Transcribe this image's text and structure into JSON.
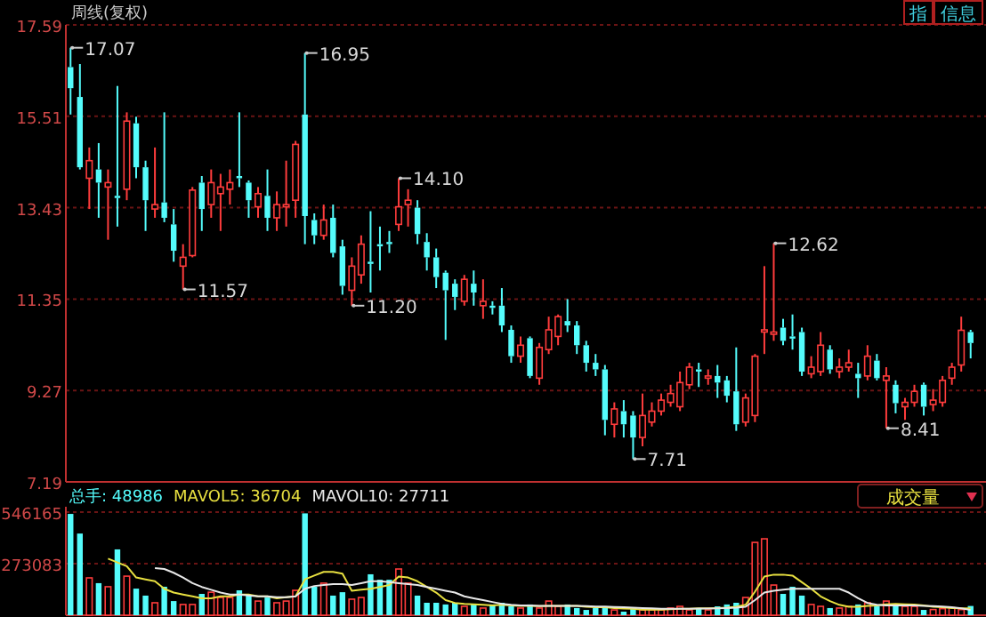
{
  "chart_data": [
    {
      "type": "candlestick",
      "title": "周线(复权)",
      "grid": "y",
      "ylim": [
        7.19,
        17.59
      ],
      "yticks": [
        7.19,
        9.27,
        11.35,
        13.43,
        15.51,
        17.59
      ],
      "categories": [
        null,
        null,
        null,
        null,
        null,
        null,
        null,
        null,
        null,
        null,
        null,
        null,
        null,
        null,
        null,
        null,
        null,
        null,
        null,
        null,
        null,
        null,
        null,
        null,
        null,
        null,
        null,
        null,
        null,
        null,
        null,
        null,
        null,
        null,
        null,
        null,
        null,
        null,
        null,
        null,
        null,
        null,
        null,
        null,
        null,
        null,
        null,
        null,
        null,
        null,
        null,
        null,
        null,
        null,
        null,
        null,
        null,
        null,
        null,
        null,
        null,
        null,
        null,
        null,
        null,
        null,
        null,
        null,
        null,
        null,
        null,
        null,
        null,
        null,
        null,
        null,
        null,
        null,
        null,
        null,
        null,
        null,
        null,
        null,
        null,
        null,
        null,
        null,
        null,
        null,
        null,
        null,
        null,
        null,
        null,
        null,
        null
      ],
      "ohlc": [
        [
          16.63,
          17.07,
          15.55,
          16.15
        ],
        [
          15.95,
          16.7,
          14.3,
          14.35
        ],
        [
          14.1,
          14.8,
          13.4,
          14.5
        ],
        [
          14.3,
          14.9,
          13.2,
          14.0
        ],
        [
          13.9,
          14.3,
          12.7,
          14.0
        ],
        [
          13.7,
          16.2,
          13.0,
          13.65
        ],
        [
          13.85,
          15.6,
          13.6,
          15.4
        ],
        [
          15.35,
          15.5,
          14.1,
          14.35
        ],
        [
          14.35,
          14.5,
          12.9,
          13.6
        ],
        [
          13.4,
          14.8,
          13.2,
          13.5
        ],
        [
          13.55,
          15.6,
          13.1,
          13.2
        ],
        [
          13.05,
          13.4,
          12.2,
          12.45
        ],
        [
          12.1,
          12.6,
          11.57,
          12.3
        ],
        [
          12.34,
          13.9,
          12.3,
          13.83
        ],
        [
          14.0,
          14.15,
          12.9,
          13.4
        ],
        [
          13.5,
          14.3,
          13.2,
          14.0
        ],
        [
          13.75,
          14.2,
          12.9,
          13.9
        ],
        [
          13.85,
          14.3,
          13.5,
          14.0
        ],
        [
          14.15,
          15.6,
          13.9,
          14.1
        ],
        [
          14.0,
          14.05,
          13.2,
          13.6
        ],
        [
          13.45,
          13.9,
          13.2,
          13.75
        ],
        [
          13.7,
          14.3,
          12.9,
          13.2
        ],
        [
          13.2,
          13.8,
          12.9,
          13.5
        ],
        [
          13.45,
          14.5,
          13.0,
          13.5
        ],
        [
          13.6,
          14.95,
          13.2,
          14.87
        ],
        [
          15.55,
          16.95,
          12.6,
          13.24
        ],
        [
          13.15,
          13.3,
          12.6,
          12.8
        ],
        [
          12.8,
          13.5,
          12.7,
          13.15
        ],
        [
          13.2,
          13.5,
          12.3,
          12.4
        ],
        [
          12.55,
          12.7,
          11.45,
          11.65
        ],
        [
          11.55,
          12.3,
          11.2,
          12.1
        ],
        [
          11.9,
          12.8,
          11.7,
          12.6
        ],
        [
          12.2,
          13.35,
          11.5,
          12.15
        ],
        [
          12.6,
          13.0,
          12.0,
          12.55
        ],
        [
          12.65,
          12.9,
          12.4,
          12.6
        ],
        [
          13.05,
          14.1,
          12.9,
          13.45
        ],
        [
          13.5,
          13.85,
          13.0,
          13.6
        ],
        [
          13.43,
          13.6,
          12.6,
          12.83
        ],
        [
          12.65,
          12.85,
          12.0,
          12.3
        ],
        [
          12.3,
          12.5,
          11.6,
          11.85
        ],
        [
          11.95,
          12.0,
          10.42,
          11.55
        ],
        [
          11.7,
          11.8,
          11.1,
          11.4
        ],
        [
          11.3,
          11.9,
          11.2,
          11.8
        ],
        [
          11.7,
          12.0,
          11.2,
          11.5
        ],
        [
          11.2,
          11.8,
          10.9,
          11.3
        ],
        [
          11.2,
          11.3,
          11.0,
          11.15
        ],
        [
          11.2,
          11.6,
          10.6,
          10.75
        ],
        [
          10.65,
          10.75,
          9.9,
          10.05
        ],
        [
          10.05,
          10.5,
          9.9,
          10.3
        ],
        [
          10.46,
          10.5,
          9.55,
          9.6
        ],
        [
          9.55,
          10.35,
          9.4,
          10.25
        ],
        [
          10.2,
          10.95,
          10.1,
          10.65
        ],
        [
          10.5,
          11.0,
          10.3,
          10.95
        ],
        [
          10.85,
          11.35,
          10.6,
          10.75
        ],
        [
          10.75,
          10.85,
          10.1,
          10.3
        ],
        [
          10.3,
          10.4,
          9.7,
          9.9
        ],
        [
          9.9,
          10.1,
          9.6,
          9.75
        ],
        [
          9.75,
          9.85,
          8.25,
          8.6
        ],
        [
          8.5,
          9.0,
          8.2,
          8.85
        ],
        [
          8.8,
          9.05,
          8.2,
          8.5
        ],
        [
          8.7,
          8.8,
          7.71,
          8.2
        ],
        [
          8.2,
          9.2,
          8.0,
          8.7
        ],
        [
          8.55,
          9.0,
          8.45,
          8.8
        ],
        [
          8.8,
          9.2,
          8.7,
          9.05
        ],
        [
          9.0,
          9.4,
          8.9,
          9.2
        ],
        [
          8.9,
          9.7,
          8.8,
          9.45
        ],
        [
          9.4,
          9.9,
          9.3,
          9.8
        ],
        [
          9.75,
          9.9,
          9.35,
          9.7
        ],
        [
          9.55,
          9.75,
          9.4,
          9.6
        ],
        [
          9.6,
          9.85,
          9.1,
          9.45
        ],
        [
          9.5,
          9.6,
          9.0,
          9.15
        ],
        [
          9.25,
          10.25,
          8.35,
          8.5
        ],
        [
          8.55,
          9.2,
          8.45,
          9.1
        ],
        [
          8.7,
          10.1,
          8.55,
          10.05
        ],
        [
          10.6,
          12.1,
          10.1,
          10.65
        ],
        [
          10.55,
          12.62,
          10.4,
          10.6
        ],
        [
          10.7,
          10.9,
          10.3,
          10.4
        ],
        [
          10.5,
          11.0,
          10.2,
          10.45
        ],
        [
          10.6,
          10.7,
          9.6,
          9.7
        ],
        [
          9.65,
          10.05,
          9.55,
          9.8
        ],
        [
          9.7,
          10.6,
          9.6,
          10.3
        ],
        [
          10.2,
          10.3,
          9.65,
          9.75
        ],
        [
          9.7,
          10.0,
          9.55,
          9.8
        ],
        [
          9.8,
          10.2,
          9.7,
          9.9
        ],
        [
          9.65,
          9.9,
          9.1,
          9.55
        ],
        [
          9.6,
          10.3,
          9.5,
          10.05
        ],
        [
          9.95,
          10.1,
          9.5,
          9.55
        ],
        [
          9.5,
          9.8,
          8.41,
          9.6
        ],
        [
          9.4,
          9.5,
          8.75,
          8.98
        ],
        [
          8.9,
          9.1,
          8.6,
          9.0
        ],
        [
          9.0,
          9.4,
          8.9,
          9.25
        ],
        [
          9.4,
          9.45,
          8.7,
          8.9
        ],
        [
          8.95,
          9.3,
          8.8,
          9.05
        ],
        [
          9.0,
          9.6,
          8.9,
          9.5
        ],
        [
          9.55,
          9.9,
          9.4,
          9.8
        ],
        [
          9.85,
          10.95,
          9.7,
          10.64
        ],
        [
          10.6,
          10.65,
          10.0,
          10.35
        ]
      ],
      "colors": [
        "#54fcfc",
        "#54fcfc",
        "#ff3c3c",
        "#54fcfc",
        "#ff3c3c",
        "#54fcfc",
        "#ff3c3c",
        "#54fcfc",
        "#54fcfc",
        "#ff3c3c",
        "#54fcfc",
        "#54fcfc",
        "#ff3c3c",
        "#ff3c3c",
        "#54fcfc",
        "#ff3c3c",
        "#ff3c3c",
        "#ff3c3c",
        "#54fcfc",
        "#54fcfc",
        "#ff3c3c",
        "#54fcfc",
        "#ff3c3c",
        "#ff3c3c",
        "#ff3c3c",
        "#54fcfc",
        "#54fcfc",
        "#ff3c3c",
        "#54fcfc",
        "#54fcfc",
        "#ff3c3c",
        "#ff3c3c",
        "#54fcfc",
        "#54fcfc",
        "#54fcfc",
        "#ff3c3c",
        "#ff3c3c",
        "#54fcfc",
        "#54fcfc",
        "#54fcfc",
        "#54fcfc",
        "#54fcfc",
        "#ff3c3c",
        "#54fcfc",
        "#ff3c3c",
        "#54fcfc",
        "#54fcfc",
        "#54fcfc",
        "#ff3c3c",
        "#54fcfc",
        "#ff3c3c",
        "#ff3c3c",
        "#ff3c3c",
        "#54fcfc",
        "#54fcfc",
        "#54fcfc",
        "#54fcfc",
        "#54fcfc",
        "#ff3c3c",
        "#54fcfc",
        "#54fcfc",
        "#ff3c3c",
        "#ff3c3c",
        "#ff3c3c",
        "#ff3c3c",
        "#ff3c3c",
        "#ff3c3c",
        "#54fcfc",
        "#ff3c3c",
        "#54fcfc",
        "#54fcfc",
        "#54fcfc",
        "#ff3c3c",
        "#ff3c3c",
        "#ff3c3c",
        "#ff3c3c",
        "#54fcfc",
        "#54fcfc",
        "#54fcfc",
        "#ff3c3c",
        "#ff3c3c",
        "#54fcfc",
        "#ff3c3c",
        "#ff3c3c",
        "#54fcfc",
        "#ff3c3c",
        "#54fcfc",
        "#ff3c3c",
        "#54fcfc",
        "#ff3c3c",
        "#ff3c3c",
        "#54fcfc",
        "#ff3c3c",
        "#ff3c3c",
        "#ff3c3c",
        "#ff3c3c",
        "#54fcfc"
      ],
      "annotations": [
        "指",
        "信息",
        "17.07",
        "16.95",
        "11.57",
        "14.10",
        "11.20",
        "7.71",
        "12.62",
        "8.41"
      ]
    },
    {
      "type": "bar",
      "grid": "y",
      "legend": "top left",
      "ylim": [
        0,
        575000
      ],
      "yticks": [
        273083,
        546165
      ],
      "annotations": [
        "成交量"
      ],
      "categories": [
        null,
        null,
        null,
        null,
        null,
        null,
        null,
        null,
        null,
        null,
        null,
        null,
        null,
        null,
        null,
        null,
        null,
        null,
        null,
        null,
        null,
        null,
        null,
        null,
        null,
        null,
        null,
        null,
        null,
        null,
        null,
        null,
        null,
        null,
        null,
        null,
        null,
        null,
        null,
        null,
        null,
        null,
        null,
        null,
        null,
        null,
        null,
        null,
        null,
        null,
        null,
        null,
        null,
        null,
        null,
        null,
        null,
        null,
        null,
        null,
        null,
        null,
        null,
        null,
        null,
        null,
        null,
        null,
        null,
        null,
        null,
        null,
        null,
        null,
        null,
        null,
        null,
        null,
        null,
        null,
        null,
        null,
        null,
        null,
        null,
        null,
        null,
        null,
        null,
        null,
        null,
        null,
        null,
        null,
        null,
        null,
        null
      ],
      "series": [
        {
          "name": "总手: 48986",
          "type": "bar",
          "color": "#54fcfc",
          "colors": [
            "#54fcfc",
            "#54fcfc",
            "#ff3c3c",
            "#54fcfc",
            "#ff3c3c",
            "#54fcfc",
            "#ff3c3c",
            "#54fcfc",
            "#54fcfc",
            "#ff3c3c",
            "#54fcfc",
            "#54fcfc",
            "#ff3c3c",
            "#ff3c3c",
            "#54fcfc",
            "#ff3c3c",
            "#ff3c3c",
            "#ff3c3c",
            "#54fcfc",
            "#54fcfc",
            "#ff3c3c",
            "#54fcfc",
            "#ff3c3c",
            "#ff3c3c",
            "#ff3c3c",
            "#54fcfc",
            "#54fcfc",
            "#ff3c3c",
            "#54fcfc",
            "#54fcfc",
            "#ff3c3c",
            "#ff3c3c",
            "#54fcfc",
            "#54fcfc",
            "#54fcfc",
            "#ff3c3c",
            "#ff3c3c",
            "#54fcfc",
            "#54fcfc",
            "#54fcfc",
            "#54fcfc",
            "#54fcfc",
            "#ff3c3c",
            "#54fcfc",
            "#ff3c3c",
            "#54fcfc",
            "#54fcfc",
            "#54fcfc",
            "#ff3c3c",
            "#54fcfc",
            "#ff3c3c",
            "#ff3c3c",
            "#ff3c3c",
            "#54fcfc",
            "#54fcfc",
            "#54fcfc",
            "#54fcfc",
            "#54fcfc",
            "#ff3c3c",
            "#54fcfc",
            "#54fcfc",
            "#ff3c3c",
            "#ff3c3c",
            "#ff3c3c",
            "#ff3c3c",
            "#ff3c3c",
            "#ff3c3c",
            "#54fcfc",
            "#ff3c3c",
            "#54fcfc",
            "#54fcfc",
            "#54fcfc",
            "#ff3c3c",
            "#ff3c3c",
            "#ff3c3c",
            "#ff3c3c",
            "#54fcfc",
            "#54fcfc",
            "#54fcfc",
            "#ff3c3c",
            "#ff3c3c",
            "#54fcfc",
            "#ff3c3c",
            "#ff3c3c",
            "#54fcfc",
            "#ff3c3c",
            "#54fcfc",
            "#ff3c3c",
            "#54fcfc",
            "#ff3c3c",
            "#ff3c3c",
            "#54fcfc",
            "#ff3c3c",
            "#ff3c3c",
            "#ff3c3c",
            "#ff3c3c",
            "#54fcfc"
          ],
          "values": [
            537000,
            433000,
            198000,
            170000,
            151000,
            349000,
            207000,
            141000,
            104000,
            66000,
            151000,
            75000,
            57000,
            57000,
            113000,
            122000,
            94000,
            94000,
            132000,
            104000,
            75000,
            94000,
            66000,
            75000,
            132000,
            540000,
            151000,
            170000,
            104000,
            122000,
            85000,
            94000,
            217000,
            188000,
            188000,
            245000,
            170000,
            104000,
            66000,
            66000,
            57000,
            66000,
            47000,
            57000,
            38000,
            57000,
            66000,
            47000,
            38000,
            57000,
            38000,
            75000,
            47000,
            57000,
            38000,
            28000,
            38000,
            47000,
            28000,
            19000,
            38000,
            28000,
            28000,
            28000,
            38000,
            47000,
            28000,
            38000,
            28000,
            47000,
            57000,
            66000,
            94000,
            386000,
            405000,
            160000,
            113000,
            151000,
            104000,
            57000,
            47000,
            38000,
            38000,
            47000,
            57000,
            66000,
            47000,
            75000,
            57000,
            47000,
            47000,
            28000,
            30000,
            35000,
            40000,
            30000,
            48986
          ]
        },
        {
          "name": "MAVOL5: 36704",
          "type": "line",
          "color": "#e8e040",
          "values": [
            null,
            null,
            null,
            null,
            300000,
            280000,
            260000,
            200000,
            190000,
            180000,
            140000,
            120000,
            110000,
            100000,
            90000,
            90000,
            100000,
            100000,
            110000,
            110000,
            100000,
            100000,
            90000,
            95000,
            100000,
            190000,
            210000,
            230000,
            230000,
            220000,
            130000,
            135000,
            140000,
            150000,
            160000,
            205000,
            200000,
            180000,
            150000,
            120000,
            80000,
            65000,
            60000,
            58000,
            55000,
            52000,
            55000,
            52000,
            50000,
            50000,
            48000,
            50000,
            50000,
            50000,
            50000,
            45000,
            42000,
            42000,
            38000,
            35000,
            34000,
            30000,
            30000,
            30000,
            32000,
            34000,
            34000,
            36000,
            36000,
            38000,
            40000,
            45000,
            55000,
            125000,
            205000,
            215000,
            215000,
            210000,
            175000,
            140000,
            100000,
            75000,
            55000,
            45000,
            45000,
            50000,
            52000,
            58000,
            60000,
            58000,
            56000,
            52000,
            45000,
            42000,
            38000,
            36000,
            36704
          ]
        },
        {
          "name": "MAVOL10: 27711",
          "type": "line",
          "color": "#e8e8e8",
          "values": [
            null,
            null,
            null,
            null,
            null,
            null,
            null,
            null,
            null,
            250000,
            245000,
            225000,
            200000,
            170000,
            150000,
            135000,
            120000,
            110000,
            110000,
            105000,
            100000,
            100000,
            95000,
            95000,
            100000,
            140000,
            155000,
            160000,
            165000,
            165000,
            160000,
            170000,
            180000,
            180000,
            175000,
            170000,
            165000,
            160000,
            150000,
            140000,
            130000,
            120000,
            100000,
            90000,
            80000,
            70000,
            60000,
            55000,
            52000,
            52000,
            50000,
            50000,
            50000,
            50000,
            50000,
            48000,
            46000,
            46000,
            44000,
            42000,
            40000,
            38000,
            36000,
            34000,
            34000,
            34000,
            34000,
            35000,
            35000,
            36000,
            38000,
            40000,
            45000,
            80000,
            120000,
            130000,
            135000,
            140000,
            140000,
            140000,
            140000,
            140000,
            140000,
            120000,
            90000,
            65000,
            55000,
            52000,
            52000,
            52000,
            52000,
            50000,
            48000,
            46000,
            42000,
            36000,
            27711
          ]
        }
      ]
    }
  ]
}
